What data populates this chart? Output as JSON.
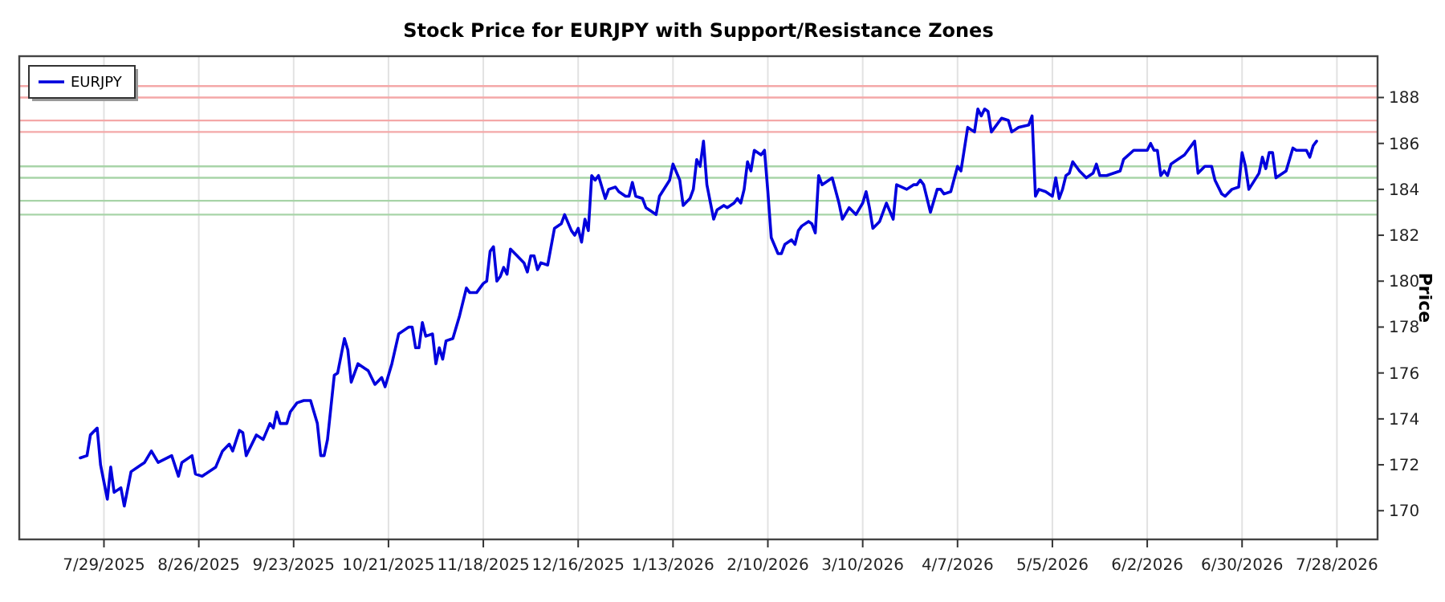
{
  "chart_data": {
    "type": "line",
    "title": "Stock Price for EURJPY with Support/Resistance Zones",
    "ylabel": "Price",
    "x": [
      "2025-07-22",
      "2025-07-24",
      "2025-07-25",
      "2025-07-27",
      "2025-07-28",
      "2025-07-30",
      "2025-07-31",
      "2025-08-01",
      "2025-08-03",
      "2025-08-04",
      "2025-08-06",
      "2025-08-09",
      "2025-08-10",
      "2025-08-12",
      "2025-08-14",
      "2025-08-18",
      "2025-08-20",
      "2025-08-21",
      "2025-08-24",
      "2025-08-25",
      "2025-08-27",
      "2025-08-31",
      "2025-09-02",
      "2025-09-04",
      "2025-09-05",
      "2025-09-07",
      "2025-09-08",
      "2025-09-09",
      "2025-09-12",
      "2025-09-14",
      "2025-09-16",
      "2025-09-17",
      "2025-09-18",
      "2025-09-19",
      "2025-09-21",
      "2025-09-22",
      "2025-09-24",
      "2025-09-26",
      "2025-09-28",
      "2025-09-30",
      "2025-10-01",
      "2025-10-02",
      "2025-10-03",
      "2025-10-05",
      "2025-10-06",
      "2025-10-08",
      "2025-10-09",
      "2025-10-10",
      "2025-10-12",
      "2025-10-14",
      "2025-10-15",
      "2025-10-17",
      "2025-10-19",
      "2025-10-20",
      "2025-10-22",
      "2025-10-24",
      "2025-10-27",
      "2025-10-28",
      "2025-10-29",
      "2025-10-30",
      "2025-10-31",
      "2025-11-01",
      "2025-11-03",
      "2025-11-04",
      "2025-11-05",
      "2025-11-06",
      "2025-11-07",
      "2025-11-09",
      "2025-11-11",
      "2025-11-13",
      "2025-11-14",
      "2025-11-16",
      "2025-11-18",
      "2025-11-19",
      "2025-11-20",
      "2025-11-21",
      "2025-11-22",
      "2025-11-23",
      "2025-11-24",
      "2025-11-25",
      "2025-11-26",
      "2025-11-28",
      "2025-11-30",
      "2025-12-01",
      "2025-12-02",
      "2025-12-03",
      "2025-12-04",
      "2025-12-05",
      "2025-12-07",
      "2025-12-09",
      "2025-12-11",
      "2025-12-12",
      "2025-12-14",
      "2025-12-15",
      "2025-12-16",
      "2025-12-17",
      "2025-12-18",
      "2025-12-19",
      "2025-12-20",
      "2025-12-21",
      "2025-12-22",
      "2025-12-24",
      "2025-12-25",
      "2025-12-27",
      "2025-12-28",
      "2025-12-30",
      "2025-12-31",
      "2026-01-01",
      "2026-01-02",
      "2026-01-04",
      "2026-01-05",
      "2026-01-08",
      "2026-01-09",
      "2026-01-12",
      "2026-01-13",
      "2026-01-15",
      "2026-01-16",
      "2026-01-18",
      "2026-01-19",
      "2026-01-20",
      "2026-01-21",
      "2026-01-22",
      "2026-01-23",
      "2026-01-25",
      "2026-01-26",
      "2026-01-28",
      "2026-01-29",
      "2026-01-31",
      "2026-02-01",
      "2026-02-02",
      "2026-02-03",
      "2026-02-04",
      "2026-02-05",
      "2026-02-06",
      "2026-02-08",
      "2026-02-09",
      "2026-02-10",
      "2026-02-11",
      "2026-02-13",
      "2026-02-14",
      "2026-02-15",
      "2026-02-17",
      "2026-02-18",
      "2026-02-19",
      "2026-02-20",
      "2026-02-22",
      "2026-02-23",
      "2026-02-24",
      "2026-02-25",
      "2026-02-26",
      "2026-02-28",
      "2026-03-01",
      "2026-03-03",
      "2026-03-04",
      "2026-03-06",
      "2026-03-08",
      "2026-03-10",
      "2026-03-11",
      "2026-03-12",
      "2026-03-13",
      "2026-03-15",
      "2026-03-17",
      "2026-03-19",
      "2026-03-20",
      "2026-03-23",
      "2026-03-25",
      "2026-03-26",
      "2026-03-27",
      "2026-03-28",
      "2026-03-30",
      "2026-04-01",
      "2026-04-02",
      "2026-04-03",
      "2026-04-05",
      "2026-04-07",
      "2026-04-08",
      "2026-04-10",
      "2026-04-12",
      "2026-04-13",
      "2026-04-14",
      "2026-04-15",
      "2026-04-16",
      "2026-04-17",
      "2026-04-20",
      "2026-04-22",
      "2026-04-23",
      "2026-04-25",
      "2026-04-28",
      "2026-04-29",
      "2026-04-30",
      "2026-05-01",
      "2026-05-03",
      "2026-05-05",
      "2026-05-06",
      "2026-05-07",
      "2026-05-08",
      "2026-05-09",
      "2026-05-10",
      "2026-05-11",
      "2026-05-13",
      "2026-05-15",
      "2026-05-17",
      "2026-05-18",
      "2026-05-19",
      "2026-05-21",
      "2026-05-25",
      "2026-05-26",
      "2026-05-29",
      "2026-06-02",
      "2026-06-03",
      "2026-06-04",
      "2026-06-05",
      "2026-06-06",
      "2026-06-07",
      "2026-06-08",
      "2026-06-09",
      "2026-06-10",
      "2026-06-13",
      "2026-06-16",
      "2026-06-17",
      "2026-06-19",
      "2026-06-21",
      "2026-06-22",
      "2026-06-24",
      "2026-06-25",
      "2026-06-27",
      "2026-06-29",
      "2026-06-30",
      "2026-07-01",
      "2026-07-02",
      "2026-07-05",
      "2026-07-06",
      "2026-07-07",
      "2026-07-08",
      "2026-07-09",
      "2026-07-10",
      "2026-07-13",
      "2026-07-15",
      "2026-07-16",
      "2026-07-19",
      "2026-07-20",
      "2026-07-21",
      "2026-07-22"
    ],
    "series": [
      {
        "name": "EURJPY",
        "color": "#0000dd",
        "values": [
          172.3,
          172.4,
          173.3,
          173.6,
          172.0,
          170.5,
          171.9,
          170.8,
          171.0,
          170.2,
          171.7,
          172.0,
          172.1,
          172.6,
          172.1,
          172.4,
          171.5,
          172.1,
          172.4,
          171.6,
          171.5,
          171.9,
          172.6,
          172.9,
          172.6,
          173.5,
          173.4,
          172.4,
          173.3,
          173.1,
          173.8,
          173.6,
          174.3,
          173.8,
          173.8,
          174.3,
          174.7,
          174.8,
          174.8,
          173.8,
          172.4,
          172.4,
          173.1,
          175.9,
          176.0,
          177.5,
          177.0,
          175.6,
          176.4,
          176.2,
          176.1,
          175.5,
          175.8,
          175.4,
          176.4,
          177.7,
          178.0,
          178.0,
          177.1,
          177.1,
          178.2,
          177.6,
          177.7,
          176.4,
          177.1,
          176.6,
          177.4,
          177.5,
          178.5,
          179.7,
          179.5,
          179.5,
          179.9,
          180.0,
          181.3,
          181.5,
          180.0,
          180.2,
          180.6,
          180.3,
          181.4,
          181.1,
          180.8,
          180.4,
          181.1,
          181.1,
          180.5,
          180.8,
          180.7,
          182.3,
          182.5,
          182.9,
          182.2,
          182.0,
          182.3,
          181.7,
          182.7,
          182.2,
          184.6,
          184.4,
          184.6,
          183.6,
          184.0,
          184.1,
          183.9,
          183.7,
          183.7,
          184.3,
          183.7,
          183.6,
          183.2,
          182.9,
          183.7,
          184.4,
          185.1,
          184.4,
          183.3,
          183.6,
          184.0,
          185.3,
          185.0,
          186.1,
          184.2,
          182.7,
          183.1,
          183.3,
          183.2,
          183.4,
          183.6,
          183.4,
          184.0,
          185.2,
          184.8,
          185.7,
          185.5,
          185.7,
          183.9,
          181.9,
          181.2,
          181.2,
          181.6,
          181.8,
          181.6,
          182.2,
          182.4,
          182.6,
          182.5,
          182.1,
          184.6,
          184.2,
          184.4,
          184.5,
          183.4,
          182.7,
          183.2,
          182.9,
          183.4,
          183.9,
          183.2,
          182.3,
          182.6,
          183.4,
          182.7,
          184.2,
          184.0,
          184.2,
          184.2,
          184.4,
          184.2,
          183.0,
          184.0,
          184.0,
          183.8,
          183.9,
          185.0,
          184.8,
          186.7,
          186.5,
          187.5,
          187.2,
          187.5,
          187.4,
          186.5,
          187.1,
          187.0,
          186.5,
          186.7,
          186.8,
          187.2,
          183.7,
          184.0,
          183.9,
          183.7,
          184.5,
          183.6,
          184.0,
          184.6,
          184.7,
          185.2,
          184.8,
          184.5,
          184.7,
          185.1,
          184.6,
          184.6,
          184.8,
          185.3,
          185.7,
          185.7,
          186.0,
          185.7,
          185.7,
          184.6,
          184.8,
          184.6,
          185.1,
          185.2,
          185.5,
          186.1,
          184.7,
          185.0,
          185.0,
          184.4,
          183.8,
          183.7,
          184.0,
          184.1,
          185.6,
          185.0,
          184.0,
          184.7,
          185.4,
          184.9,
          185.6,
          185.6,
          184.5,
          184.8,
          185.8,
          185.7,
          185.7,
          185.4,
          185.9,
          186.1
        ]
      }
    ],
    "xlim": [
      "2025-07-04",
      "2026-08-09"
    ],
    "xticks": [
      {
        "value": "2025-07-29",
        "label": "7/29/2025"
      },
      {
        "value": "2025-08-26",
        "label": "8/26/2025"
      },
      {
        "value": "2025-09-23",
        "label": "9/23/2025"
      },
      {
        "value": "2025-10-21",
        "label": "10/21/2025"
      },
      {
        "value": "2025-11-18",
        "label": "11/18/2025"
      },
      {
        "value": "2025-12-16",
        "label": "12/16/2025"
      },
      {
        "value": "2026-01-13",
        "label": "1/13/2026"
      },
      {
        "value": "2026-02-10",
        "label": "2/10/2026"
      },
      {
        "value": "2026-03-10",
        "label": "3/10/2026"
      },
      {
        "value": "2026-04-07",
        "label": "4/7/2026"
      },
      {
        "value": "2026-05-05",
        "label": "5/5/2026"
      },
      {
        "value": "2026-06-02",
        "label": "6/2/2026"
      },
      {
        "value": "2026-06-30",
        "label": "6/30/2026"
      },
      {
        "value": "2026-07-28",
        "label": "7/28/2026"
      }
    ],
    "ylim": [
      168.75,
      189.8
    ],
    "yticks": [
      170,
      172,
      174,
      176,
      178,
      180,
      182,
      184,
      186,
      188
    ],
    "ref_lines": [
      {
        "axis": "y",
        "value": 188.5,
        "color": "#f4a8a8"
      },
      {
        "axis": "y",
        "value": 188.0,
        "color": "#f4a8a8"
      },
      {
        "axis": "y",
        "value": 187.0,
        "color": "#f4a8a8"
      },
      {
        "axis": "y",
        "value": 186.5,
        "color": "#f4a8a8"
      },
      {
        "axis": "y",
        "value": 185.0,
        "color": "#a8d4a8"
      },
      {
        "axis": "y",
        "value": 184.5,
        "color": "#a8d4a8"
      },
      {
        "axis": "y",
        "value": 183.5,
        "color": "#a8d4a8"
      },
      {
        "axis": "y",
        "value": 182.9,
        "color": "#a8d4a8"
      }
    ],
    "grid": "x",
    "legend": "top left",
    "line_style": "solid",
    "marker": "none"
  }
}
